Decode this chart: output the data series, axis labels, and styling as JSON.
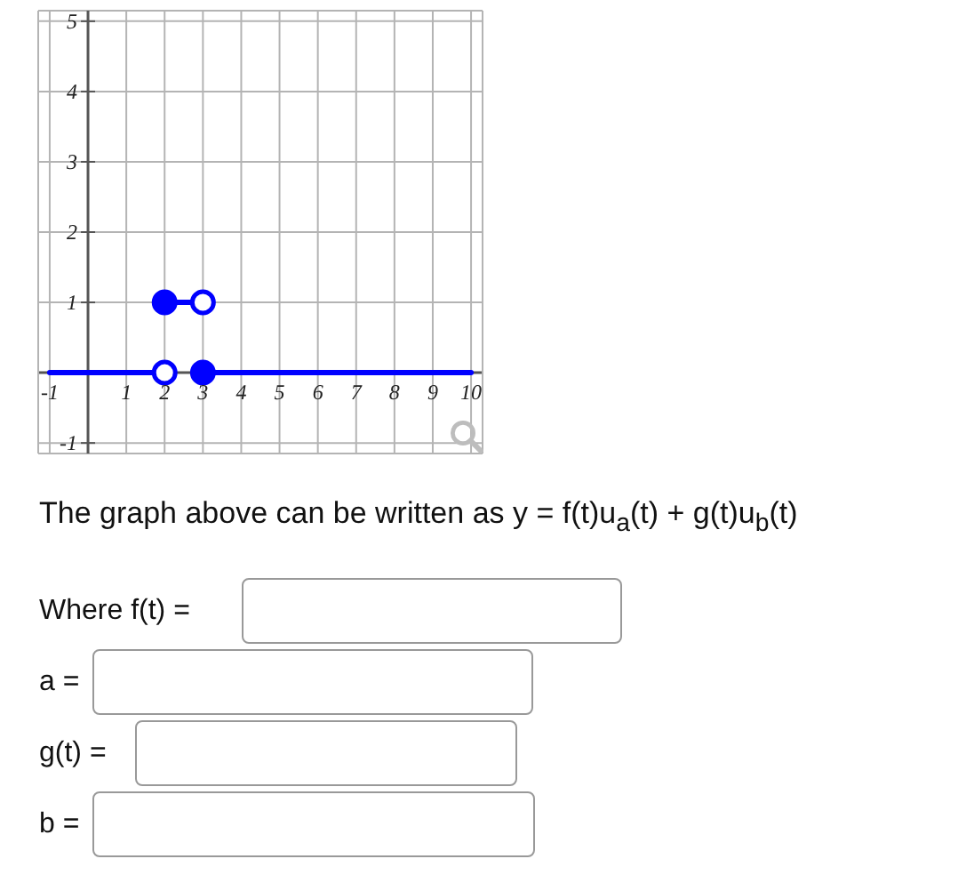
{
  "chart_data": {
    "type": "line",
    "xlim": [
      -1.3,
      10.3
    ],
    "ylim": [
      -1.15,
      5.15
    ],
    "xticks": [
      -1,
      {
        "value": 0,
        "label": null
      },
      1,
      2,
      3,
      4,
      5,
      6,
      7,
      8,
      9,
      10
    ],
    "yticks": [
      -1,
      {
        "value": 0,
        "label": null
      },
      1,
      2,
      3,
      4,
      5
    ],
    "grid": true,
    "series": [
      {
        "color": "#0000ff",
        "x": [
          -1,
          2
        ],
        "values": [
          0,
          0
        ]
      },
      {
        "color": "#0000ff",
        "x": [
          2,
          3
        ],
        "values": [
          1,
          1
        ]
      },
      {
        "color": "#0000ff",
        "x": [
          3,
          10
        ],
        "values": [
          0,
          0
        ]
      },
      {
        "type": "scatter",
        "color": "#0000ff",
        "marker": "circle",
        "x": [
          2,
          3
        ],
        "values": [
          1,
          0
        ]
      },
      {
        "type": "scatter",
        "color": "#0000ff",
        "marker": "circle-open",
        "x": [
          3,
          2
        ],
        "values": [
          1,
          0
        ]
      }
    ],
    "annotations": [
      "The graph above can be written as y = f(t)u$_{a}$(t) + g(t)u$_{b}$(t)",
      "Where f(t) =",
      "a =",
      "g(t) =",
      "b ="
    ]
  }
}
